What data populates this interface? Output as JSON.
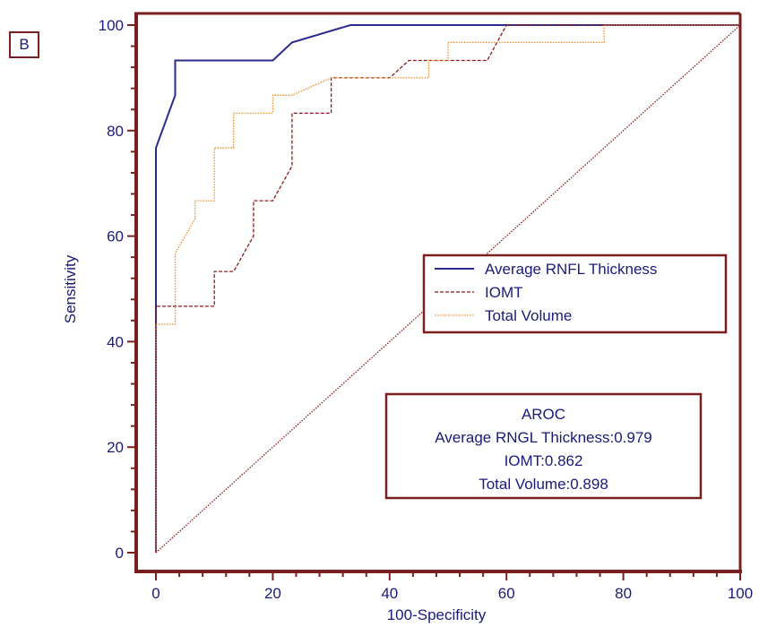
{
  "panel_label": "B",
  "chart_data": {
    "type": "line",
    "title": "",
    "xlabel": "100-Specificity",
    "ylabel": "Sensitivity",
    "xlim": [
      0,
      100
    ],
    "ylim": [
      0,
      100
    ],
    "x_ticks": [
      0,
      20,
      40,
      60,
      80,
      100
    ],
    "y_ticks": [
      0,
      20,
      40,
      60,
      80,
      100
    ],
    "grid": false,
    "legend_position": "center-right",
    "colors": {
      "axis": "#7a1f1f",
      "text": "#1a1a7a"
    },
    "series": [
      {
        "name": "Average RNFL Thickness",
        "color": "#2b2b8f",
        "style": "solid",
        "x": [
          0,
          0,
          3.3,
          3.3,
          20,
          23.3,
          33.3,
          100
        ],
        "y": [
          0,
          76.7,
          86.7,
          93.3,
          93.3,
          96.7,
          100,
          100
        ]
      },
      {
        "name": "IOMT",
        "color": "#8b1a1a",
        "style": "dashed",
        "x": [
          0,
          0,
          10,
          10,
          13.3,
          16.7,
          16.7,
          20,
          23.3,
          23.3,
          30,
          30,
          40,
          43.3,
          56.7,
          60,
          100
        ],
        "y": [
          0,
          46.7,
          46.7,
          53.3,
          53.3,
          60,
          66.7,
          66.7,
          73.3,
          83.3,
          83.3,
          90,
          90,
          93.3,
          93.3,
          100,
          100
        ]
      },
      {
        "name": "Total Volume",
        "color": "#f08a24",
        "style": "dotted",
        "x": [
          0,
          0,
          3.3,
          3.3,
          6.7,
          6.7,
          10,
          10,
          13.3,
          13.3,
          20,
          20,
          23.3,
          30,
          46.7,
          46.7,
          50,
          50,
          76.7,
          76.7,
          100
        ],
        "y": [
          0,
          43.3,
          43.3,
          56.7,
          63.3,
          66.7,
          66.7,
          76.7,
          76.7,
          83.3,
          83.3,
          86.7,
          86.7,
          90,
          90,
          93.3,
          93.3,
          96.7,
          96.7,
          100,
          100
        ]
      },
      {
        "color": "#8b1a1a",
        "style": "dotted",
        "x": [
          0,
          100
        ],
        "y": [
          0,
          100
        ]
      }
    ],
    "annotation": {
      "lines": [
        "AROC",
        "Average RNGL Thickness:0.979",
        "IOMT:0.862",
        "Total Volume:0.898"
      ]
    }
  }
}
